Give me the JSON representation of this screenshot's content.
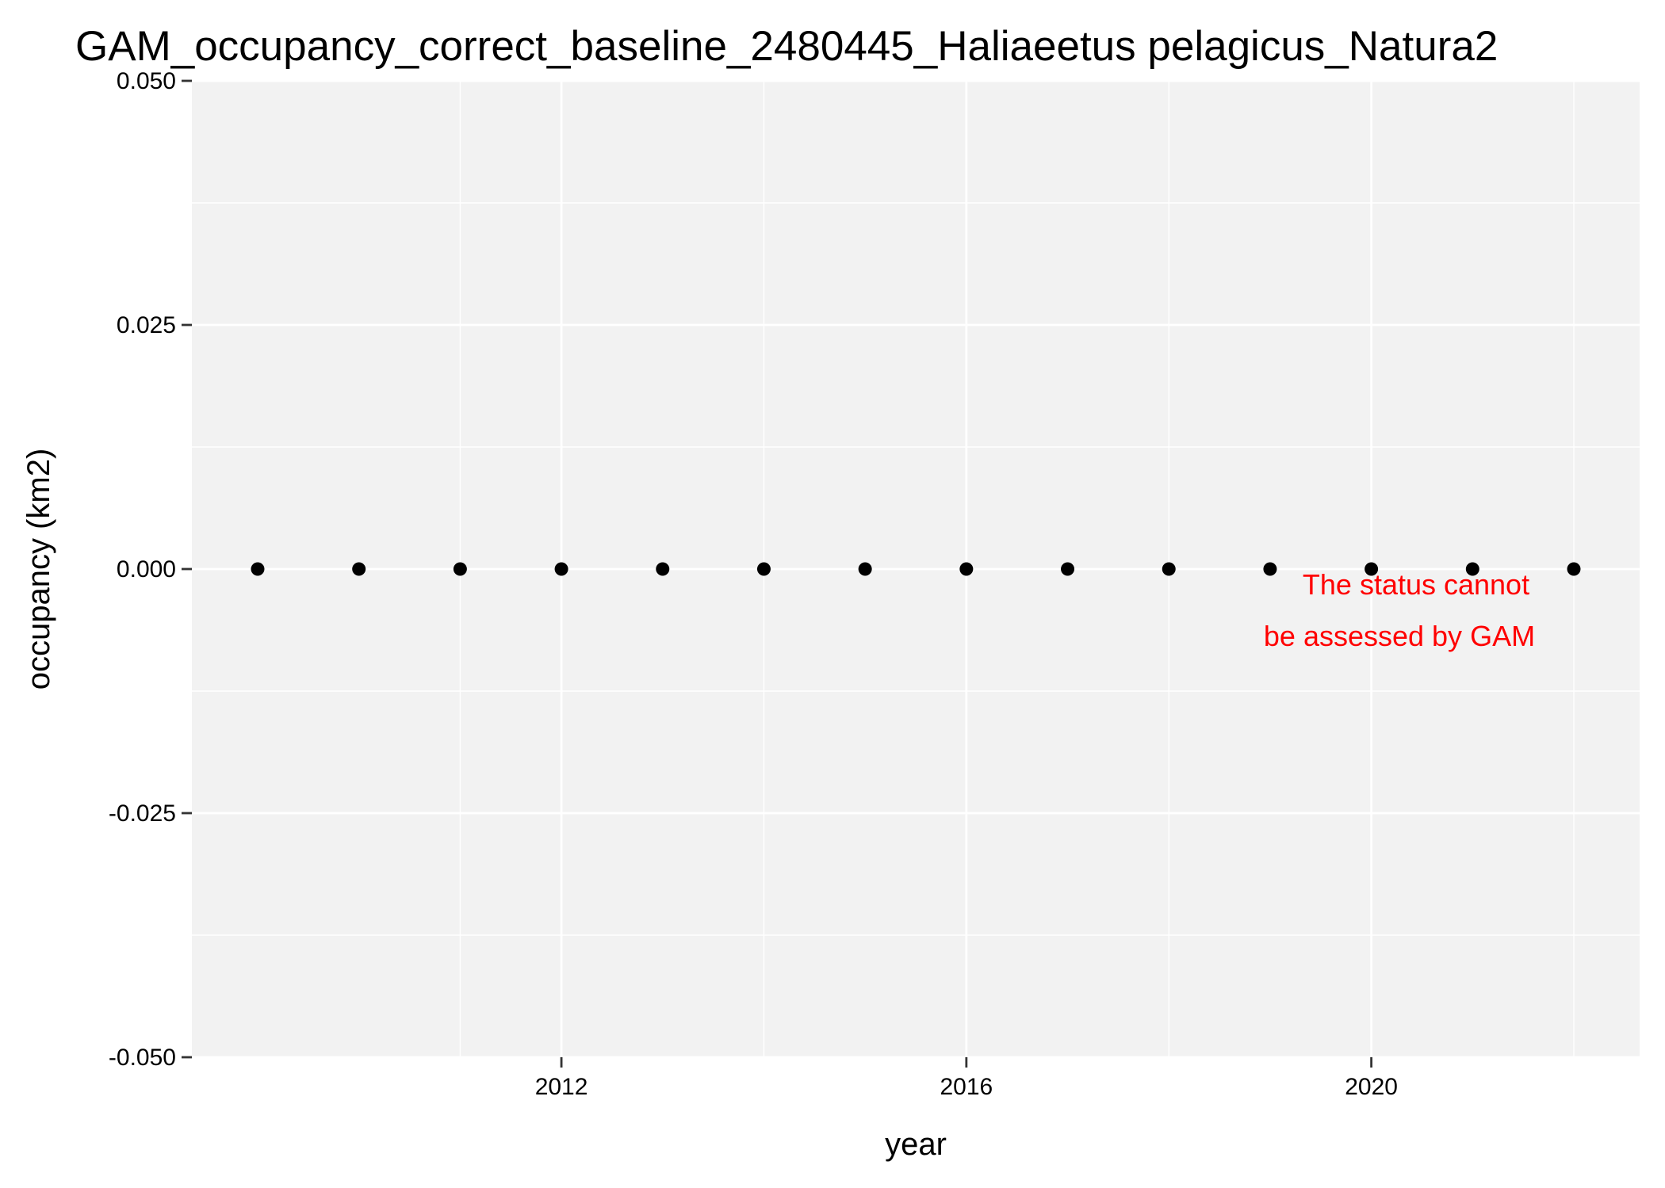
{
  "chart_data": {
    "type": "scatter",
    "title": "GAM_occupancy_correct_baseline_2480445_Haliaeetus pelagicus_Natura2",
    "xlabel": "year",
    "ylabel": "occupancy (km2)",
    "xlim": [
      2008.35,
      2022.65
    ],
    "ylim": [
      -0.05,
      0.05
    ],
    "x_ticks": [
      2012,
      2016,
      2020
    ],
    "x_tick_labels": [
      "2012",
      "2016",
      "2020"
    ],
    "y_ticks": [
      -0.05,
      -0.025,
      0,
      0.025,
      0.05
    ],
    "y_tick_labels": [
      "-0.050",
      "-0.025",
      "0.000",
      "0.025",
      "0.050"
    ],
    "grid": true,
    "legend": "none",
    "points": {
      "x": [
        2009,
        2010,
        2011,
        2012,
        2013,
        2014,
        2015,
        2016,
        2017,
        2018,
        2019,
        2020,
        2021,
        2022
      ],
      "y": [
        0,
        0,
        0,
        0,
        0,
        0,
        0,
        0,
        0,
        0,
        0,
        0,
        0,
        0
      ]
    },
    "annotation": {
      "lines": [
        "The status cannot",
        "be assessed by GAM"
      ],
      "x": 2022,
      "y": 0,
      "color": "#FF0000"
    },
    "colors": {
      "panel_background": "#F2F2F2",
      "grid": "#FFFFFF",
      "points": "#000000",
      "annotation": "#FF0000"
    }
  }
}
